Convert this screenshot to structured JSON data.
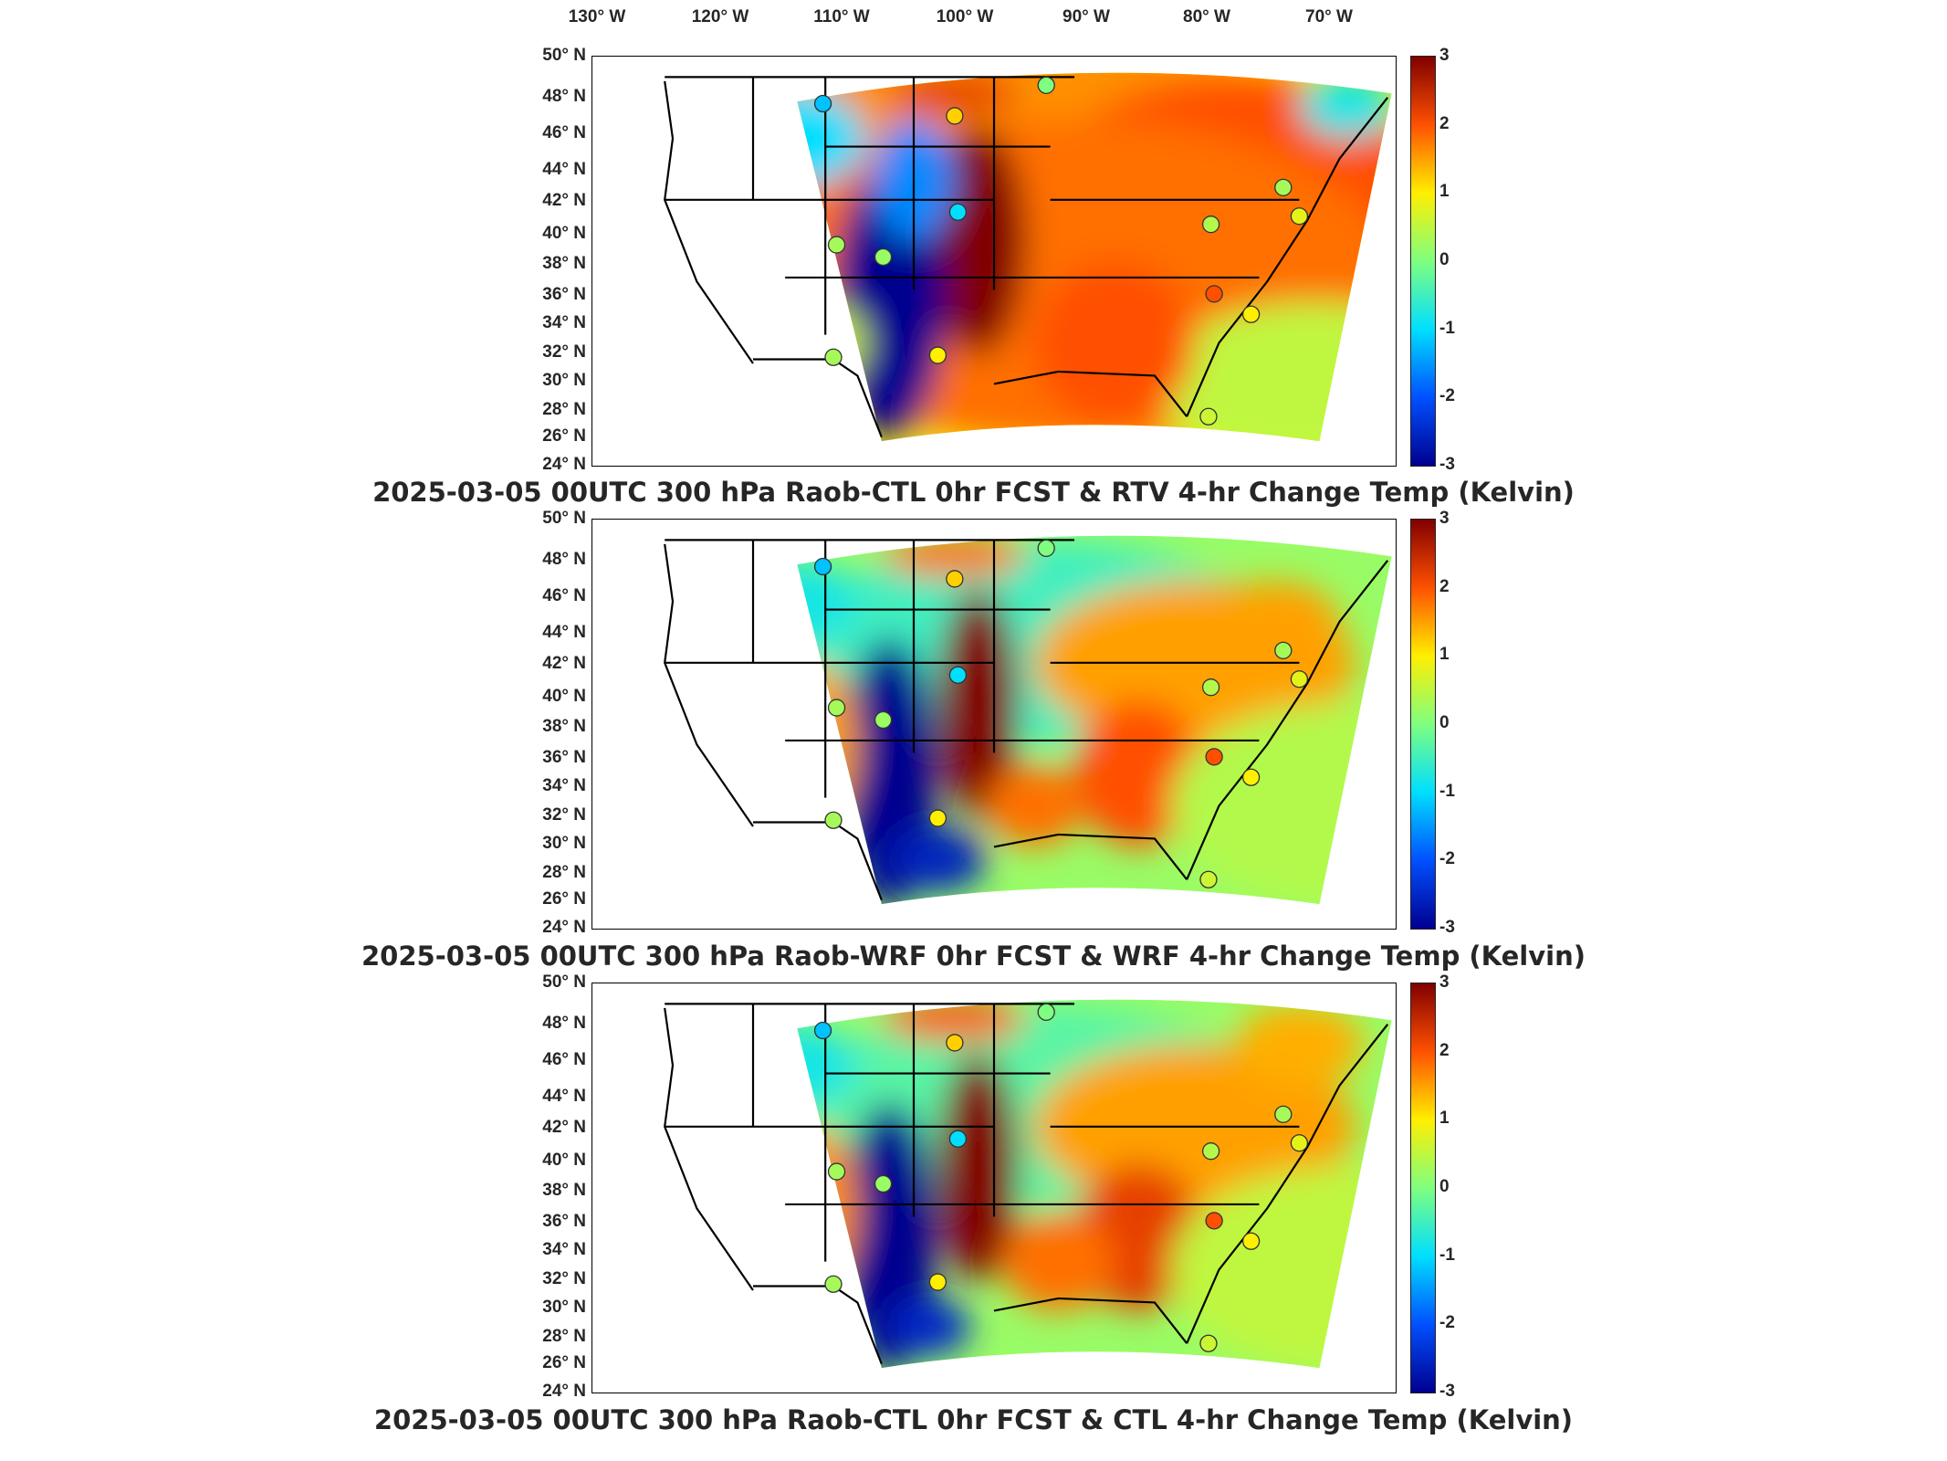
{
  "lon_labels": [
    "130° W",
    "120° W",
    "110° W",
    "100° W",
    "90° W",
    "80° W",
    "70° W"
  ],
  "lat_labels": [
    "50° N",
    "48° N",
    "46° N",
    "44° N",
    "42° N",
    "40° N",
    "38° N",
    "36° N",
    "34° N",
    "32° N",
    "30° N",
    "28° N",
    "26° N",
    "24° N"
  ],
  "colorbar": {
    "min": -3,
    "max": 3,
    "ticks": [
      "3",
      "2",
      "1",
      "0",
      "-1",
      "-2",
      "-3"
    ],
    "colors": [
      "#00008f",
      "#0050ff",
      "#00dfff",
      "#7fff7f",
      "#ffef00",
      "#ff5000",
      "#800000"
    ]
  },
  "panels": [
    {
      "title": "2025-03-05 00UTC 300 hPa Raob-CTL 0hr FCST & RTV 4-hr Change Temp (Kelvin)",
      "field": "RTV"
    },
    {
      "title": "2025-03-05 00UTC 300 hPa Raob-WRF 0hr FCST & WRF 4-hr Change Temp (Kelvin)",
      "field": "WRF"
    },
    {
      "title": "2025-03-05 00UTC 300 hPa Raob-CTL 0hr FCST & CTL 4-hr Change Temp (Kelvin)",
      "field": "CTL"
    }
  ]
}
